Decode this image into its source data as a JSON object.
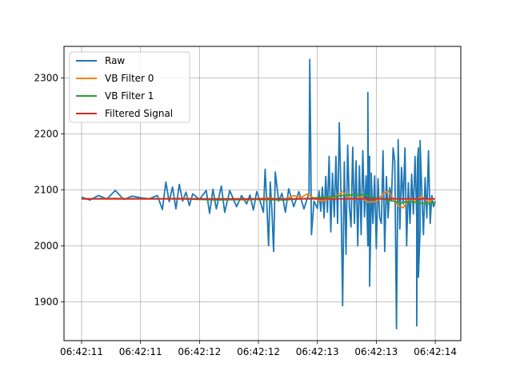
{
  "chart_data": {
    "type": "line",
    "title": "",
    "xlabel": "",
    "ylabel": "",
    "x_tick_labels": [
      "06:42:11",
      "06:42:11",
      "06:42:12",
      "06:42:12",
      "06:42:13",
      "06:42:13",
      "06:42:14"
    ],
    "x_range": [
      0,
      2.1
    ],
    "y_ticks": [
      1900,
      2000,
      2100,
      2200,
      2300
    ],
    "ylim": [
      1828,
      2355
    ],
    "grid": true,
    "legend_position": "upper-left",
    "series": [
      {
        "name": "Raw",
        "color": "#1f77b4",
        "points": [
          [
            0.0,
            2087
          ],
          [
            0.05,
            2082
          ],
          [
            0.1,
            2090
          ],
          [
            0.15,
            2084
          ],
          [
            0.2,
            2099
          ],
          [
            0.25,
            2083
          ],
          [
            0.3,
            2089
          ],
          [
            0.35,
            2086
          ],
          [
            0.4,
            2084
          ],
          [
            0.45,
            2090
          ],
          [
            0.48,
            2065
          ],
          [
            0.5,
            2114
          ],
          [
            0.52,
            2079
          ],
          [
            0.54,
            2105
          ],
          [
            0.56,
            2066
          ],
          [
            0.58,
            2110
          ],
          [
            0.6,
            2080
          ],
          [
            0.62,
            2096
          ],
          [
            0.64,
            2072
          ],
          [
            0.66,
            2093
          ],
          [
            0.7,
            2083
          ],
          [
            0.74,
            2099
          ],
          [
            0.76,
            2058
          ],
          [
            0.78,
            2101
          ],
          [
            0.8,
            2066
          ],
          [
            0.83,
            2107
          ],
          [
            0.85,
            2060
          ],
          [
            0.88,
            2099
          ],
          [
            0.92,
            2070
          ],
          [
            0.95,
            2090
          ],
          [
            0.98,
            2075
          ],
          [
            1.0,
            2091
          ],
          [
            1.02,
            2064
          ],
          [
            1.04,
            2097
          ],
          [
            1.06,
            2080
          ],
          [
            1.08,
            2060
          ],
          [
            1.09,
            2137
          ],
          [
            1.1,
            2073
          ],
          [
            1.11,
            2000
          ],
          [
            1.12,
            2114
          ],
          [
            1.13,
            2062
          ],
          [
            1.14,
            1990
          ],
          [
            1.15,
            2132
          ],
          [
            1.17,
            2080
          ],
          [
            1.19,
            2094
          ],
          [
            1.21,
            2060
          ],
          [
            1.23,
            2102
          ],
          [
            1.26,
            2070
          ],
          [
            1.29,
            2097
          ],
          [
            1.32,
            2066
          ],
          [
            1.35,
            2094
          ],
          [
            1.38,
            2080
          ],
          [
            1.4,
            2067
          ],
          [
            1.41,
            2098
          ],
          [
            1.42,
            2062
          ],
          [
            1.43,
            2105
          ],
          [
            1.44,
            2050
          ],
          [
            1.45,
            2124
          ],
          [
            1.46,
            2060
          ],
          [
            1.47,
            2160
          ],
          [
            1.48,
            2025
          ],
          [
            1.49,
            2130
          ],
          [
            1.5,
            2052
          ],
          [
            1.51,
            2160
          ],
          [
            1.52,
            2040
          ],
          [
            1.53,
            2220
          ],
          [
            1.54,
            2095
          ],
          [
            1.55,
            1893
          ],
          [
            1.56,
            2150
          ],
          [
            1.57,
            1985
          ],
          [
            1.58,
            2180
          ],
          [
            1.59,
            2070
          ],
          [
            1.6,
            2034
          ],
          [
            1.61,
            2176
          ],
          [
            1.62,
            2040
          ],
          [
            1.63,
            2152
          ],
          [
            1.64,
            2000
          ],
          [
            1.65,
            2143
          ],
          [
            1.66,
            2020
          ],
          [
            1.67,
            2170
          ],
          [
            1.68,
            2052
          ],
          [
            1.69,
            2125
          ],
          [
            1.7,
            2000
          ],
          [
            1.71,
            2160
          ],
          [
            1.72,
            2085
          ],
          [
            1.73,
            2040
          ],
          [
            1.74,
            2125
          ],
          [
            1.75,
            1995
          ],
          [
            1.76,
            2120
          ],
          [
            1.77,
            2050
          ],
          [
            1.78,
            2040
          ],
          [
            1.79,
            2170
          ],
          [
            1.8,
            1990
          ],
          [
            1.81,
            2124
          ],
          [
            1.82,
            2050
          ],
          [
            1.83,
            2104
          ],
          [
            1.84,
            2080
          ],
          [
            1.85,
            2175
          ],
          [
            1.86,
            2150
          ],
          [
            1.87,
            1852
          ],
          [
            1.88,
            2190
          ],
          [
            1.89,
            2030
          ],
          [
            1.9,
            2140
          ],
          [
            1.91,
            2075
          ],
          [
            1.92,
            2175
          ],
          [
            1.93,
            2000
          ],
          [
            1.94,
            2113
          ],
          [
            1.95,
            2040
          ],
          [
            1.96,
            2128
          ],
          [
            1.97,
            2057
          ],
          [
            1.98,
            2160
          ],
          [
            1.99,
            2050
          ],
          [
            2.0,
            2175
          ],
          [
            2.01,
            2030
          ],
          [
            2.02,
            2100
          ],
          [
            2.03,
            2020
          ],
          [
            2.04,
            2122
          ],
          [
            2.05,
            2050
          ],
          [
            2.06,
            2170
          ],
          [
            2.07,
            2040
          ],
          [
            2.08,
            2090
          ],
          [
            2.09,
            2070
          ],
          [
            2.1,
            2080
          ]
        ],
        "spikes": [
          [
            1.355,
            2333
          ],
          [
            1.36,
            2190
          ],
          [
            1.365,
            2020
          ],
          [
            1.7,
            2274
          ],
          [
            1.705,
            2000
          ],
          [
            1.71,
            1928
          ],
          [
            1.72,
            2130
          ],
          [
            1.99,
            1857
          ],
          [
            1.995,
            2154
          ],
          [
            2.0,
            1944
          ],
          [
            2.01,
            2188
          ]
        ]
      },
      {
        "name": "VB Filter 0",
        "color": "#ff7f0e",
        "points": [
          [
            0.0,
            2084
          ],
          [
            0.2,
            2085
          ],
          [
            0.4,
            2084
          ],
          [
            0.6,
            2085
          ],
          [
            0.8,
            2083
          ],
          [
            1.0,
            2082
          ],
          [
            1.1,
            2086
          ],
          [
            1.2,
            2082
          ],
          [
            1.26,
            2090
          ],
          [
            1.3,
            2086
          ],
          [
            1.34,
            2093
          ],
          [
            1.38,
            2085
          ],
          [
            1.42,
            2080
          ],
          [
            1.45,
            2082
          ],
          [
            1.5,
            2086
          ],
          [
            1.55,
            2097
          ],
          [
            1.58,
            2088
          ],
          [
            1.62,
            2083
          ],
          [
            1.66,
            2088
          ],
          [
            1.7,
            2078
          ],
          [
            1.75,
            2079
          ],
          [
            1.79,
            2093
          ],
          [
            1.82,
            2098
          ],
          [
            1.85,
            2085
          ],
          [
            1.88,
            2072
          ],
          [
            1.91,
            2068
          ],
          [
            1.94,
            2083
          ],
          [
            1.98,
            2082
          ],
          [
            2.02,
            2088
          ],
          [
            2.06,
            2079
          ],
          [
            2.1,
            2085
          ]
        ]
      },
      {
        "name": "VB Filter 1",
        "color": "#2ca02c",
        "points": [
          [
            0.0,
            2084
          ],
          [
            0.2,
            2084
          ],
          [
            0.4,
            2084
          ],
          [
            0.6,
            2084
          ],
          [
            0.8,
            2082
          ],
          [
            1.0,
            2083
          ],
          [
            1.2,
            2082
          ],
          [
            1.3,
            2084
          ],
          [
            1.4,
            2086
          ],
          [
            1.5,
            2088
          ],
          [
            1.55,
            2090
          ],
          [
            1.6,
            2091
          ],
          [
            1.65,
            2092
          ],
          [
            1.7,
            2090
          ],
          [
            1.75,
            2085
          ],
          [
            1.8,
            2083
          ],
          [
            1.85,
            2080
          ],
          [
            1.9,
            2077
          ],
          [
            1.95,
            2079
          ],
          [
            2.0,
            2077
          ],
          [
            2.05,
            2075
          ],
          [
            2.1,
            2077
          ]
        ]
      },
      {
        "name": "Filtered Signal",
        "color": "#d62728",
        "points": [
          [
            0.0,
            2084
          ],
          [
            2.1,
            2084
          ]
        ]
      }
    ]
  }
}
